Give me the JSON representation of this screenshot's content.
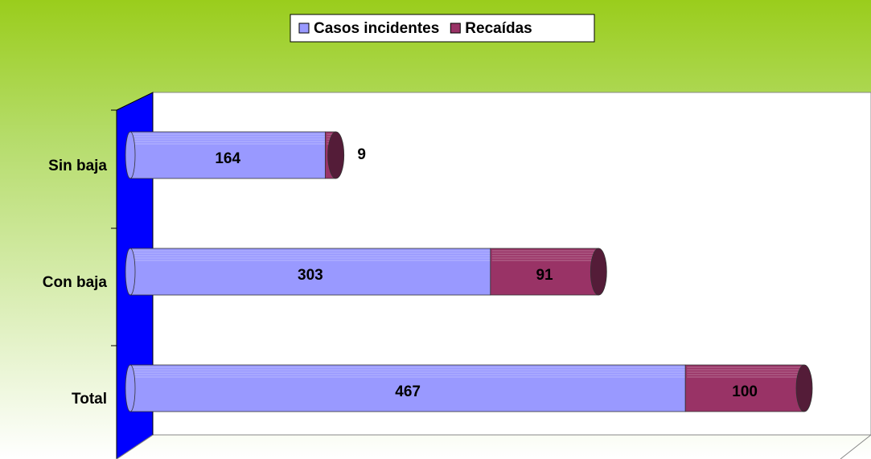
{
  "chart_data": {
    "type": "stacked_bar_horizontal",
    "categories": [
      "Sin baja",
      "Con baja",
      "Total"
    ],
    "series": [
      {
        "name": "Casos incidentes",
        "color": "#9999ff",
        "values": [
          164,
          303,
          467
        ]
      },
      {
        "name": "Recaídas",
        "color": "#993366",
        "values": [
          9,
          91,
          100
        ]
      }
    ],
    "legend": "top"
  }
}
